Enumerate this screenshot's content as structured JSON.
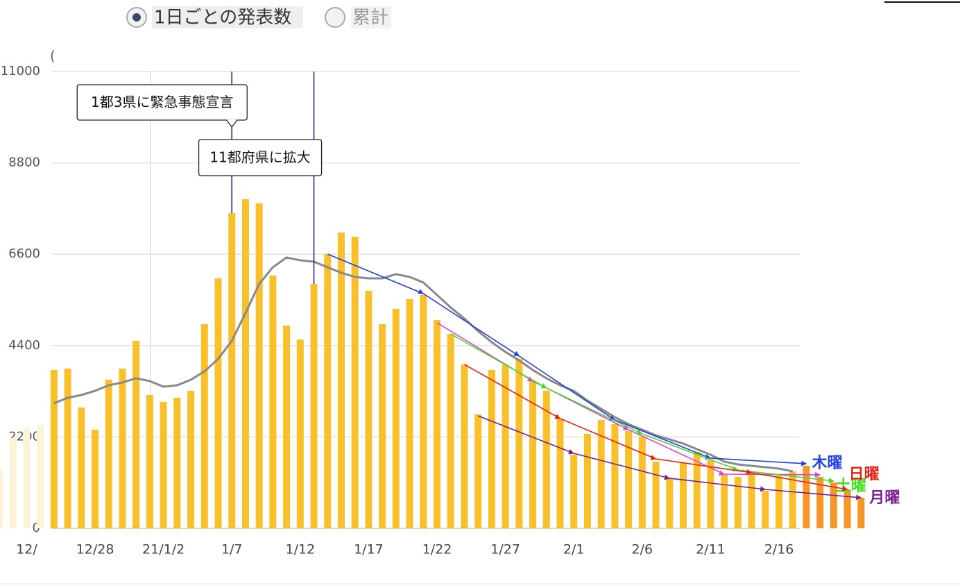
{
  "controls": {
    "options": [
      {
        "label": "1日ごとの発表数",
        "selected": true
      },
      {
        "label": "累計",
        "selected": false
      }
    ]
  },
  "chart_data": {
    "type": "bar",
    "y_label": "(",
    "categories": [
      null,
      null,
      "12/",
      null,
      null,
      null,
      null,
      "12/28",
      null,
      null,
      null,
      null,
      "21/1/2",
      null,
      null,
      null,
      null,
      "1/7",
      null,
      null,
      null,
      null,
      "1/12",
      null,
      null,
      null,
      null,
      "1/17",
      null,
      null,
      null,
      null,
      "1/22",
      null,
      null,
      null,
      null,
      "1/27",
      null,
      null,
      null,
      null,
      "2/1",
      null,
      null,
      null,
      null,
      "2/6",
      null,
      null,
      null,
      null,
      "2/11",
      null,
      null,
      null,
      null,
      "2/16",
      null,
      null,
      null,
      null,
      null,
      null
    ],
    "series": [
      {
        "values": [
          1421,
          2174,
          2408,
          2491,
          3812,
          3845,
          2909,
          2374,
          3578,
          3845,
          4514,
          3210,
          3043,
          3143,
          3311,
          4916,
          6019,
          7591,
          7925,
          7825,
          6086,
          4882,
          4548,
          5885,
          6604,
          7123,
          7022,
          5718,
          4916,
          5284,
          5518,
          5618,
          5016,
          4682,
          3946,
          2742,
          3812,
          3946,
          4080,
          3545,
          3311,
          2642,
          1772,
          2274,
          2608,
          2508,
          2341,
          2207,
          1605,
          1204,
          1572,
          1839,
          1639,
          1304,
          1237,
          1338,
          903,
          1271,
          1371,
          1505,
          1237,
          1103,
          936,
          736
        ],
        "colors": [
          "#fdf4d8",
          "#fdf4d8",
          "#fdf4d8",
          "#fdf4d8",
          "#f8c12c",
          "#f8c12c",
          "#f8c12c",
          "#f8c12c",
          "#f8c12c",
          "#f8c12c",
          "#f8c12c",
          "#f8c12c",
          "#f8c12c",
          "#f8c12c",
          "#f8c12c",
          "#f8c12c",
          "#f8c12c",
          "#f8c12c",
          "#f8c12c",
          "#f8c12c",
          "#f8c12c",
          "#f8c12c",
          "#f8c12c",
          "#f8c12c",
          "#f8c12c",
          "#f8c12c",
          "#f8c12c",
          "#f8c12c",
          "#f8c12c",
          "#f8c12c",
          "#f8c12c",
          "#f8c12c",
          "#f8c12c",
          "#f8c12c",
          "#f8c12c",
          "#f8c12c",
          "#f8c12c",
          "#f8c12c",
          "#f8c12c",
          "#f8c12c",
          "#f8c12c",
          "#f8c12c",
          "#f8c12c",
          "#f8c12c",
          "#f8c12c",
          "#f8c12c",
          "#f8c12c",
          "#f8c12c",
          "#f8c12c",
          "#f8c12c",
          "#f8c12c",
          "#f8c12c",
          "#f8c12c",
          "#f8c12c",
          "#f8c12c",
          "#f8c12c",
          "#f8c12c",
          "#f8c12c",
          "#f8c12c",
          "#f7962b",
          "#f7962b",
          "#f7962b",
          "#f7962b",
          "#f7962b"
        ]
      },
      {
        "type": "line",
        "color": "#888888",
        "values": [
          null,
          null,
          null,
          null,
          3010,
          3143,
          3210,
          3311,
          3444,
          3511,
          3612,
          3545,
          3411,
          3444,
          3578,
          3779,
          4080,
          4514,
          5184,
          5885,
          6287,
          6521,
          6454,
          6420,
          6287,
          6153,
          6053,
          6019,
          6019,
          6120,
          6053,
          5919,
          5618,
          5317,
          5050,
          4749,
          4481,
          4247,
          4046,
          3812,
          3612,
          3444,
          3311,
          3077,
          2876,
          2675,
          2508,
          2374,
          2240,
          2140,
          2040,
          1906,
          1772,
          1605,
          1538,
          1505,
          1471,
          1438,
          1371,
          null,
          null,
          null,
          null,
          null
        ]
      }
    ],
    "trends": [
      {
        "name": "木曜",
        "color": "#2340e0",
        "x": [
          "1/14",
          "1/21",
          "1/28",
          "2/4",
          "2/11",
          "2/18"
        ],
        "values": [
          6604,
          5651,
          4147,
          2608,
          1689,
          1555
        ]
      },
      {
        "color": "#e040e0",
        "x": [
          "1/22",
          "1/29",
          "2/5",
          "2/12",
          "2/19"
        ],
        "values": [
          4949,
          3545,
          2374,
          1304,
          1287
        ]
      },
      {
        "name": "土曜",
        "color": "#40e020",
        "x": [
          "1/23",
          "1/30",
          "2/6",
          "2/13",
          "2/20"
        ],
        "values": [
          4682,
          3378,
          2274,
          1404,
          1137
        ]
      },
      {
        "name": "日曜",
        "color": "#e82010",
        "x": [
          "1/24",
          "1/31",
          "2/7",
          "2/14",
          "2/21"
        ],
        "values": [
          3946,
          2642,
          1672,
          1338,
          936
        ]
      },
      {
        "name": "月曜",
        "color": "#7a2090",
        "x": [
          "1/25",
          "2/1",
          "2/8",
          "2/15",
          "2/22"
        ],
        "values": [
          2709,
          1806,
          1204,
          936,
          736
        ]
      }
    ],
    "annotations": [
      {
        "text": "1都3県に緊急事態宣言",
        "x": "1/7"
      },
      {
        "text": "11都府県に拡大",
        "x": "1/13"
      }
    ],
    "ylim": [
      0,
      11000
    ],
    "yticks": [
      0,
      2200,
      4400,
      6600,
      8800,
      11000
    ],
    "grid": true
  }
}
